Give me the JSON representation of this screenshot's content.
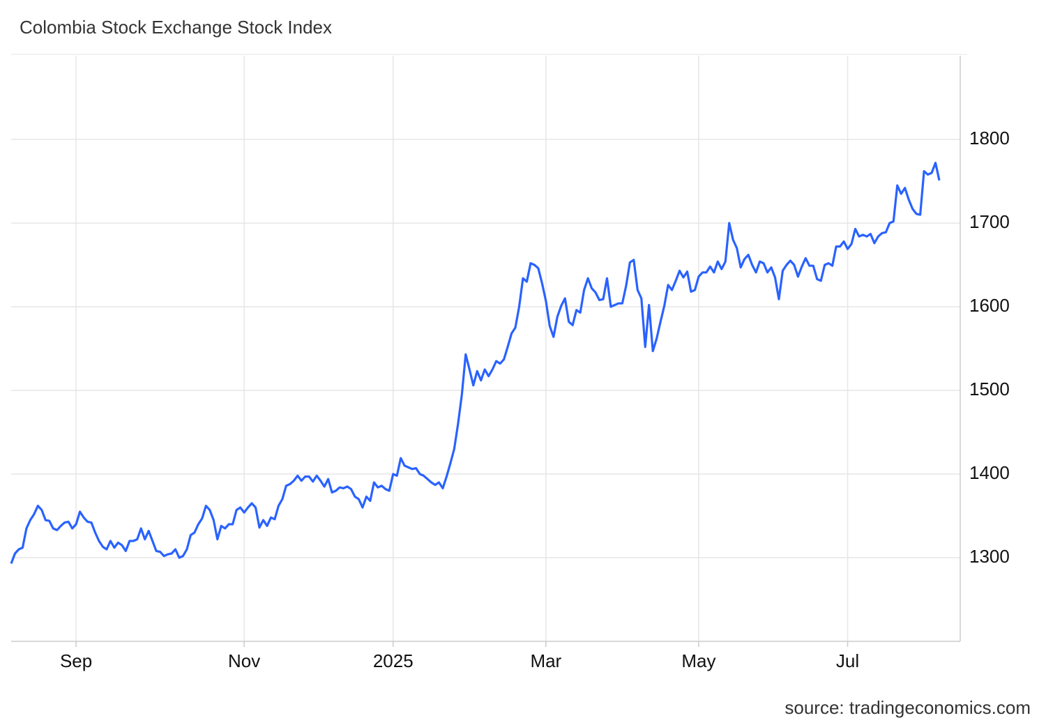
{
  "chart_data": {
    "type": "line",
    "title": "Colombia Stock Exchange Stock Index",
    "source": "source: tradingeconomics.com",
    "categories": [
      null,
      null,
      null,
      null,
      null,
      null,
      null,
      null,
      null,
      null,
      null,
      null,
      null,
      null,
      null,
      null,
      null,
      "Sep",
      null,
      null,
      null,
      null,
      null,
      null,
      null,
      null,
      null,
      null,
      null,
      null,
      null,
      null,
      null,
      null,
      null,
      null,
      null,
      null,
      null,
      null,
      null,
      null,
      null,
      null,
      null,
      null,
      null,
      null,
      null,
      null,
      null,
      null,
      null,
      null,
      null,
      null,
      null,
      null,
      null,
      null,
      null,
      "Nov",
      null,
      null,
      null,
      null,
      null,
      null,
      null,
      null,
      null,
      null,
      null,
      null,
      null,
      null,
      null,
      null,
      null,
      null,
      null,
      null,
      null,
      null,
      null,
      null,
      null,
      null,
      null,
      null,
      null,
      null,
      null,
      null,
      null,
      null,
      null,
      null,
      null,
      null,
      "2025",
      null,
      null,
      null,
      null,
      null,
      null,
      null,
      null,
      null,
      null,
      null,
      null,
      null,
      null,
      null,
      null,
      null,
      null,
      null,
      null,
      null,
      null,
      null,
      null,
      null,
      null,
      null,
      null,
      null,
      null,
      null,
      null,
      null,
      null,
      null,
      null,
      null,
      null,
      null,
      "Mar",
      null,
      null,
      null,
      null,
      null,
      null,
      null,
      null,
      null,
      null,
      null,
      null,
      null,
      null,
      null,
      null,
      null,
      null,
      null,
      null,
      null,
      null,
      null,
      null,
      null,
      null,
      null,
      null,
      null,
      null,
      null,
      null,
      null,
      null,
      null,
      null,
      null,
      null,
      null,
      "May",
      null,
      null,
      null,
      null,
      null,
      null,
      null,
      null,
      null,
      null,
      null,
      null,
      null,
      null,
      null,
      null,
      null,
      null,
      null,
      null,
      null,
      null,
      null,
      null,
      null,
      null,
      null,
      null,
      null,
      null,
      null,
      null,
      null,
      null,
      null,
      null,
      null,
      null,
      "Jul",
      null,
      null,
      null,
      null,
      null,
      null,
      null,
      null,
      null,
      null,
      null,
      null,
      null,
      null,
      null,
      null,
      null,
      null,
      null,
      null,
      null,
      null,
      null,
      null
    ],
    "series": [
      {
        "name": "Colombia Stock Exchange Stock Index",
        "color": "#2962ff",
        "values": [
          1293,
          1305,
          1310,
          1312,
          1335,
          1345,
          1352,
          1362,
          1357,
          1345,
          1344,
          1335,
          1333,
          1338,
          1342,
          1343,
          1335,
          1340,
          1355,
          1348,
          1343,
          1342,
          1330,
          1320,
          1313,
          1310,
          1320,
          1312,
          1318,
          1315,
          1308,
          1320,
          1320,
          1322,
          1335,
          1322,
          1332,
          1320,
          1308,
          1307,
          1302,
          1304,
          1305,
          1310,
          1300,
          1302,
          1310,
          1327,
          1330,
          1340,
          1347,
          1362,
          1357,
          1345,
          1322,
          1338,
          1335,
          1340,
          1340,
          1357,
          1360,
          1354,
          1360,
          1365,
          1360,
          1336,
          1345,
          1338,
          1348,
          1346,
          1362,
          1370,
          1386,
          1388,
          1392,
          1398,
          1392,
          1397,
          1397,
          1391,
          1398,
          1392,
          1385,
          1394,
          1378,
          1380,
          1384,
          1383,
          1385,
          1382,
          1373,
          1370,
          1360,
          1373,
          1368,
          1390,
          1384,
          1386,
          1382,
          1380,
          1400,
          1398,
          1419,
          1410,
          1408,
          1406,
          1407,
          1400,
          1398,
          1394,
          1390,
          1387,
          1390,
          1383,
          1397,
          1413,
          1430,
          1460,
          1495,
          1543,
          1525,
          1506,
          1523,
          1512,
          1525,
          1517,
          1525,
          1535,
          1532,
          1537,
          1552,
          1568,
          1575,
          1600,
          1634,
          1630,
          1652,
          1650,
          1646,
          1628,
          1607,
          1577,
          1564,
          1588,
          1601,
          1610,
          1582,
          1578,
          1596,
          1593,
          1620,
          1634,
          1622,
          1617,
          1608,
          1609,
          1634,
          1600,
          1602,
          1604,
          1604,
          1625,
          1653,
          1656,
          1620,
          1610,
          1552,
          1602,
          1547,
          1562,
          1582,
          1601,
          1626,
          1620,
          1631,
          1643,
          1635,
          1642,
          1618,
          1620,
          1636,
          1641,
          1641,
          1648,
          1641,
          1654,
          1645,
          1654,
          1700,
          1680,
          1670,
          1647,
          1657,
          1662,
          1650,
          1641,
          1654,
          1652,
          1641,
          1647,
          1635,
          1609,
          1643,
          1650,
          1655,
          1650,
          1636,
          1648,
          1658,
          1649,
          1649,
          1633,
          1631,
          1650,
          1652,
          1649,
          1672,
          1672,
          1678,
          1669,
          1675,
          1693,
          1684,
          1686,
          1684,
          1687,
          1676,
          1684,
          1688,
          1689,
          1700,
          1702,
          1745,
          1735,
          1742,
          1728,
          1717,
          1711,
          1710,
          1762,
          1758,
          1760,
          1772,
          1751
        ]
      }
    ],
    "ylim": [
      1200,
      1900
    ],
    "yticks": [
      1300,
      1400,
      1500,
      1600,
      1700,
      1800
    ],
    "grid": true
  }
}
